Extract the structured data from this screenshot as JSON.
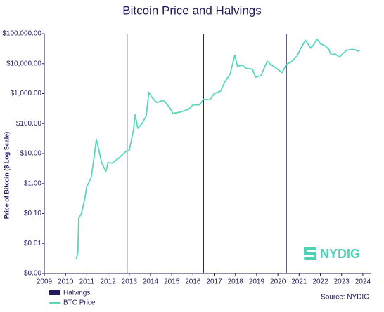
{
  "chart_data": {
    "type": "line",
    "title": "Bitcoin Price and Halvings",
    "y_label": "Price of Bitcoin ($ Log Scale)",
    "source": "Source: NYDIG",
    "logo": "NYDIG",
    "log_scale": true,
    "xlim": [
      2009,
      2024.4
    ],
    "xticks": [
      2009,
      2010,
      2011,
      2012,
      2013,
      2014,
      2015,
      2016,
      2017,
      2018,
      2019,
      2020,
      2021,
      2022,
      2023,
      2024
    ],
    "ylim": [
      0.001,
      100000
    ],
    "yticks": [
      {
        "value": 0.001,
        "label": "$0.00"
      },
      {
        "value": 0.01,
        "label": "$0.01"
      },
      {
        "value": 0.1,
        "label": "$0.10"
      },
      {
        "value": 1,
        "label": "$1.00"
      },
      {
        "value": 10,
        "label": "$10.00"
      },
      {
        "value": 100,
        "label": "$100.00"
      },
      {
        "value": 1000,
        "label": "$1,000.00"
      },
      {
        "value": 10000,
        "label": "$10,000.00"
      },
      {
        "value": 100000,
        "label": "$100,000.00"
      }
    ],
    "halvings": {
      "name": "Halvings",
      "color": "#201a5c",
      "x": [
        2012.9,
        2016.5,
        2020.4
      ]
    },
    "series": [
      {
        "name": "BTC Price",
        "color": "#5bd6bd",
        "x": [
          2010.5,
          2010.58,
          2010.62,
          2010.75,
          2010.9,
          2011.0,
          2011.2,
          2011.35,
          2011.45,
          2011.55,
          2011.7,
          2011.9,
          2012.0,
          2012.2,
          2012.5,
          2012.8,
          2013.0,
          2013.2,
          2013.28,
          2013.4,
          2013.6,
          2013.8,
          2013.92,
          2014.1,
          2014.3,
          2014.6,
          2014.9,
          2015.05,
          2015.4,
          2015.8,
          2016.0,
          2016.3,
          2016.5,
          2016.8,
          2017.0,
          2017.3,
          2017.5,
          2017.75,
          2017.97,
          2018.1,
          2018.3,
          2018.5,
          2018.8,
          2018.95,
          2019.2,
          2019.5,
          2019.7,
          2019.9,
          2020.2,
          2020.4,
          2020.6,
          2020.9,
          2021.1,
          2021.3,
          2021.55,
          2021.7,
          2021.85,
          2022.0,
          2022.2,
          2022.4,
          2022.5,
          2022.7,
          2022.9,
          2023.1,
          2023.25,
          2023.5,
          2023.65,
          2023.75,
          2023.85
        ],
        "values": [
          0.003,
          0.005,
          0.07,
          0.1,
          0.3,
          0.8,
          1.5,
          8,
          30,
          15,
          5,
          2.5,
          5,
          4.8,
          7,
          11,
          13,
          60,
          200,
          70,
          100,
          180,
          1100,
          700,
          500,
          600,
          350,
          220,
          240,
          300,
          420,
          420,
          650,
          620,
          1000,
          1200,
          2500,
          4500,
          19000,
          8000,
          9000,
          7000,
          6500,
          3500,
          4000,
          12000,
          9000,
          7200,
          5000,
          9500,
          11000,
          18000,
          35000,
          60000,
          33000,
          45000,
          65000,
          46000,
          40000,
          30000,
          20000,
          21000,
          16500,
          23000,
          28000,
          30000,
          29000,
          26000,
          28000
        ]
      }
    ]
  }
}
